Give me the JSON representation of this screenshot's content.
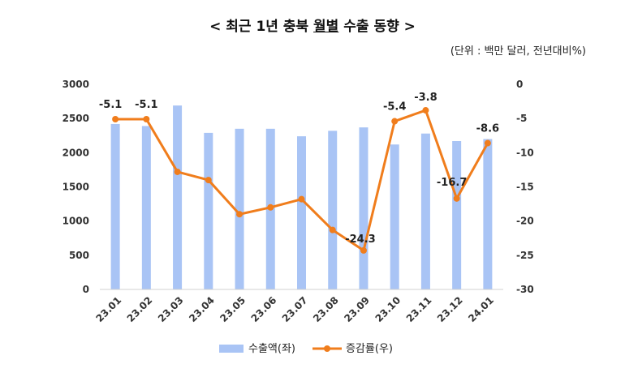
{
  "title": {
    "prefix": "< 최근 1년 충북 ",
    "underlined": "월별",
    "suffix": " 수출 동향 >"
  },
  "unit_note": "(단위 : 백만 달러, 전년대비%)",
  "chart_data": {
    "type": "bar+line",
    "categories": [
      "23.01",
      "23.02",
      "23.03",
      "23.04",
      "23.05",
      "23.06",
      "23.07",
      "23.08",
      "23.09",
      "23.10",
      "23.11",
      "23.12",
      "24.01"
    ],
    "series": [
      {
        "name": "수출액(좌)",
        "type": "bar",
        "axis": "left",
        "color": "#a9c4f5",
        "values": [
          2420,
          2390,
          2690,
          2290,
          2350,
          2350,
          2240,
          2320,
          2370,
          2120,
          2280,
          2170,
          2200
        ]
      },
      {
        "name": "증감률(우)",
        "type": "line",
        "axis": "right",
        "color": "#f07d1c",
        "values": [
          -5.1,
          -5.1,
          -12.8,
          -14.0,
          -19.0,
          -18.0,
          -16.8,
          -21.3,
          -24.3,
          -5.4,
          -3.8,
          -16.7,
          -8.6
        ]
      }
    ],
    "data_labels": [
      {
        "index": 0,
        "text": "-5.1"
      },
      {
        "index": 1,
        "text": "-5.1"
      },
      {
        "index": 8,
        "text": "-24.3"
      },
      {
        "index": 9,
        "text": "-5.4"
      },
      {
        "index": 10,
        "text": "-3.8"
      },
      {
        "index": 11,
        "text": "-16.7"
      },
      {
        "index": 12,
        "text": "-8.6"
      }
    ],
    "y_left": {
      "min": 0,
      "max": 3000,
      "ticks": [
        0,
        500,
        1000,
        1500,
        2000,
        2500,
        3000
      ]
    },
    "y_right": {
      "min": -30,
      "max": 0,
      "ticks": [
        0,
        -5,
        -10,
        -15,
        -20,
        -25,
        -30
      ]
    },
    "grid": false,
    "legend_position": "bottom"
  }
}
